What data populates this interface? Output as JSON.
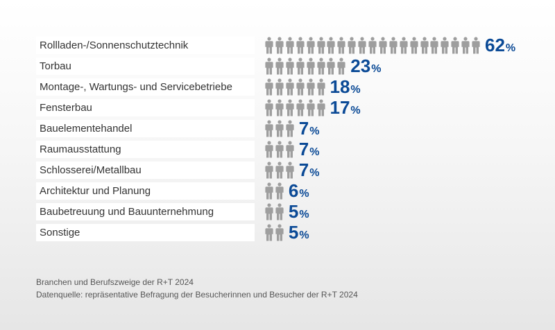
{
  "chart_data": {
    "type": "bar",
    "categories": [
      "Rollladen-/Sonnenschutztechnik",
      "Torbau",
      "Montage-, Wartungs- und Servicebetriebe",
      "Fensterbau",
      "Bauelementehandel",
      "Raumausstattung",
      "Schlosserei/Metallbau",
      "Architektur und Planung",
      "Baubetreuung und Bauunternehmung",
      "Sonstige"
    ],
    "values": [
      62,
      23,
      18,
      17,
      7,
      7,
      7,
      6,
      5,
      5
    ],
    "unit": "%",
    "icon_counts": [
      21,
      8,
      6,
      6,
      3,
      3,
      3,
      2,
      2,
      2
    ],
    "title": "",
    "xlabel": "",
    "ylabel": "",
    "colors": {
      "icon": "#9e9e9e",
      "value": "#0b4a96",
      "label_box": "#ffffff"
    }
  },
  "caption": {
    "line1": "Branchen und Berufszweige der R+T 2024",
    "line2": "Datenquelle: repräsentative Befragung der Besucherinnen und Besucher der R+T 2024"
  }
}
